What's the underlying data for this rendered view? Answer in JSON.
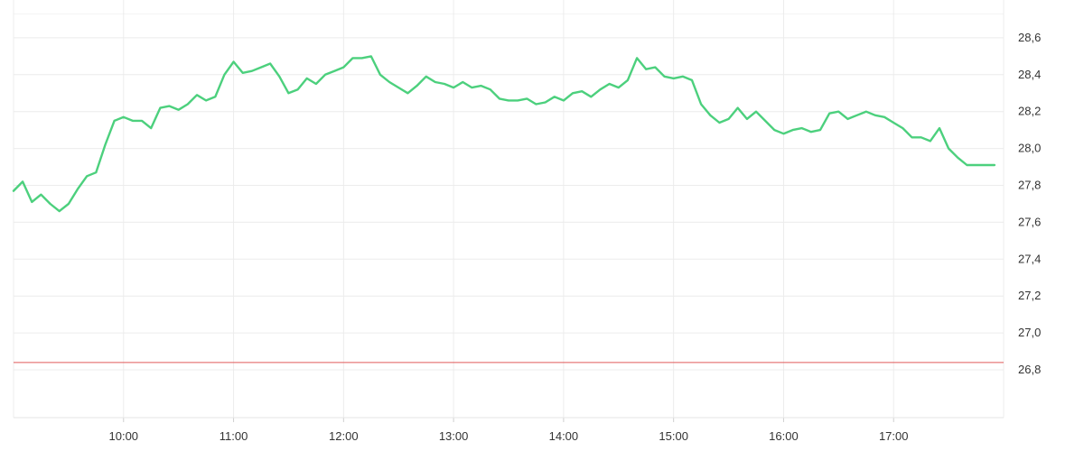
{
  "chart_data": {
    "type": "line",
    "title": "",
    "xlabel": "",
    "ylabel": "",
    "x_axis": {
      "start": "09:00",
      "end": "18:00",
      "ticks": [
        "10:00",
        "11:00",
        "12:00",
        "13:00",
        "14:00",
        "15:00",
        "16:00",
        "17:00"
      ]
    },
    "y_axis": {
      "side": "right",
      "ylim": [
        26.5,
        28.65
      ],
      "ticks": [
        "26,8",
        "27,0",
        "27,2",
        "27,4",
        "27,6",
        "27,8",
        "28,0",
        "28,2",
        "28,4",
        "28,6"
      ]
    },
    "grid": true,
    "series": [
      {
        "color": "#4cd07d",
        "x": [
          "09:00",
          "09:05",
          "09:10",
          "09:15",
          "09:20",
          "09:25",
          "09:30",
          "09:35",
          "09:40",
          "09:45",
          "09:50",
          "09:55",
          "10:00",
          "10:05",
          "10:10",
          "10:15",
          "10:20",
          "10:25",
          "10:30",
          "10:35",
          "10:40",
          "10:45",
          "10:50",
          "10:55",
          "11:00",
          "11:05",
          "11:10",
          "11:15",
          "11:20",
          "11:25",
          "11:30",
          "11:35",
          "11:40",
          "11:45",
          "11:50",
          "11:55",
          "12:00",
          "12:05",
          "12:10",
          "12:15",
          "12:20",
          "12:25",
          "12:30",
          "12:35",
          "12:40",
          "12:45",
          "12:50",
          "12:55",
          "13:00",
          "13:05",
          "13:10",
          "13:15",
          "13:20",
          "13:25",
          "13:30",
          "13:35",
          "13:40",
          "13:45",
          "13:50",
          "13:55",
          "14:00",
          "14:05",
          "14:10",
          "14:15",
          "14:20",
          "14:25",
          "14:30",
          "14:35",
          "14:40",
          "14:45",
          "14:50",
          "14:55",
          "15:00",
          "15:05",
          "15:10",
          "15:15",
          "15:20",
          "15:25",
          "15:30",
          "15:35",
          "15:40",
          "15:45",
          "15:50",
          "15:55",
          "16:00",
          "16:05",
          "16:10",
          "16:15",
          "16:20",
          "16:25",
          "16:30",
          "16:35",
          "16:40",
          "16:45",
          "16:50",
          "16:55",
          "17:00",
          "17:05",
          "17:10",
          "17:15",
          "17:20",
          "17:25",
          "17:30",
          "17:35",
          "17:40",
          "17:45",
          "17:50",
          "17:55"
        ],
        "values": [
          27.77,
          27.82,
          27.71,
          27.75,
          27.7,
          27.66,
          27.7,
          27.78,
          27.85,
          27.87,
          28.02,
          28.15,
          28.17,
          28.15,
          28.15,
          28.11,
          28.22,
          28.23,
          28.21,
          28.24,
          28.29,
          28.26,
          28.28,
          28.4,
          28.47,
          28.41,
          28.42,
          28.44,
          28.46,
          28.39,
          28.3,
          28.32,
          28.38,
          28.35,
          28.4,
          28.42,
          28.44,
          28.49,
          28.49,
          28.5,
          28.4,
          28.36,
          28.33,
          28.3,
          28.34,
          28.39,
          28.36,
          28.35,
          28.33,
          28.36,
          28.33,
          28.34,
          28.32,
          28.27,
          28.26,
          28.26,
          28.27,
          28.24,
          28.25,
          28.28,
          28.26,
          28.3,
          28.31,
          28.28,
          28.32,
          28.35,
          28.33,
          28.37,
          28.49,
          28.43,
          28.44,
          28.39,
          28.38,
          28.39,
          28.37,
          28.24,
          28.18,
          28.14,
          28.16,
          28.22,
          28.16,
          28.2,
          28.15,
          28.1,
          28.08,
          28.1,
          28.11,
          28.09,
          28.1,
          28.19,
          28.2,
          28.16,
          28.18,
          28.2,
          28.18,
          28.17,
          28.14,
          28.11,
          28.06,
          28.06,
          28.04,
          28.11,
          28.0,
          27.95,
          27.91,
          27.91,
          27.91,
          27.91
        ]
      }
    ],
    "reference_line": {
      "value": 26.84,
      "color": "#e05a5a"
    }
  }
}
